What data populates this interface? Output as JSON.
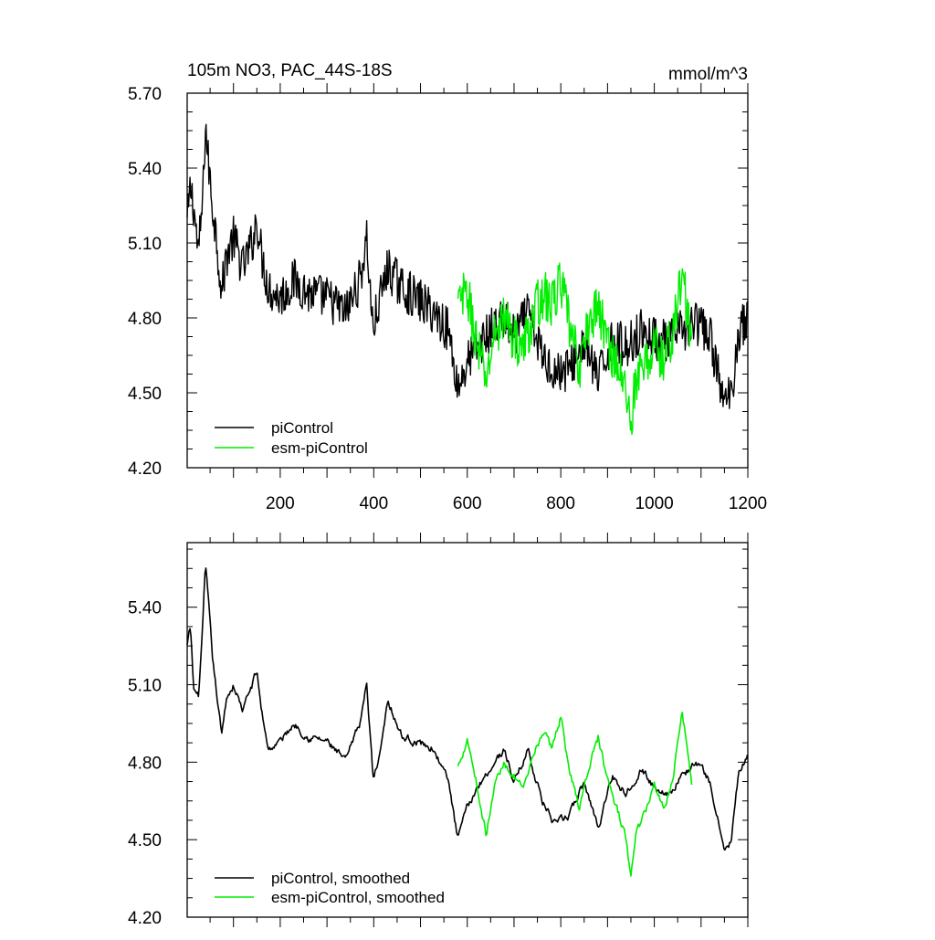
{
  "chart_data": [
    {
      "type": "line",
      "title": "105m NO3, PAC_44S-18S",
      "units": "mmol/m^3",
      "xlim": [
        1,
        1200
      ],
      "ylim": [
        4.2,
        5.7
      ],
      "xticks": [
        200,
        400,
        600,
        800,
        1000,
        1200
      ],
      "xtick_labels": [
        "200",
        "400",
        "600",
        "800",
        "1000",
        "1200"
      ],
      "yticks": [
        4.2,
        4.5,
        4.8,
        5.1,
        5.4,
        5.7
      ],
      "ytick_labels": [
        "4.20",
        "4.50",
        "4.80",
        "5.10",
        "5.40",
        "5.70"
      ],
      "legend_position": "bottom-left",
      "grid": false,
      "series": [
        {
          "name": "piControl",
          "color": "#000000",
          "x_range": [
            1,
            1200
          ],
          "anchors_x": [
            1,
            8,
            15,
            25,
            35,
            40,
            45,
            55,
            65,
            75,
            85,
            100,
            120,
            140,
            150,
            160,
            175,
            200,
            230,
            260,
            300,
            340,
            370,
            385,
            398,
            410,
            430,
            460,
            490,
            530,
            560,
            580,
            600,
            620,
            650,
            680,
            700,
            730,
            760,
            790,
            820,
            850,
            880,
            910,
            940,
            970,
            1000,
            1030,
            1060,
            1090,
            1120,
            1150,
            1165,
            1180,
            1200
          ],
          "anchors_y": [
            5.18,
            5.32,
            5.25,
            5.05,
            5.3,
            5.58,
            5.45,
            5.25,
            5.1,
            4.9,
            5.05,
            5.12,
            5.0,
            5.1,
            5.2,
            5.05,
            4.92,
            4.88,
            4.95,
            4.9,
            4.88,
            4.82,
            4.95,
            5.12,
            4.75,
            4.85,
            5.0,
            4.92,
            4.88,
            4.82,
            4.75,
            4.52,
            4.62,
            4.68,
            4.75,
            4.8,
            4.72,
            4.82,
            4.65,
            4.58,
            4.6,
            4.7,
            4.55,
            4.72,
            4.68,
            4.75,
            4.72,
            4.7,
            4.75,
            4.78,
            4.72,
            4.45,
            4.5,
            4.75,
            4.8
          ],
          "noise_amplitude": 0.09
        },
        {
          "name": "esm-piControl",
          "color": "#00ee00",
          "x_range": [
            580,
            1080
          ],
          "anchors_x": [
            580,
            600,
            620,
            640,
            660,
            680,
            700,
            720,
            740,
            760,
            780,
            800,
            820,
            840,
            860,
            880,
            900,
            920,
            940,
            950,
            960,
            980,
            1000,
            1020,
            1040,
            1060,
            1080
          ],
          "anchors_y": [
            4.85,
            4.9,
            4.7,
            4.55,
            4.75,
            4.8,
            4.72,
            4.68,
            4.8,
            4.9,
            4.85,
            4.95,
            4.75,
            4.6,
            4.78,
            4.85,
            4.7,
            4.62,
            4.5,
            4.38,
            4.55,
            4.6,
            4.7,
            4.62,
            4.75,
            4.98,
            4.7
          ],
          "noise_amplitude": 0.1
        }
      ]
    },
    {
      "type": "line",
      "xlim": [
        1,
        1200
      ],
      "ylim": [
        4.2,
        5.65
      ],
      "xticks": [
        200,
        400,
        600,
        800,
        1000,
        1200
      ],
      "yticks": [
        4.2,
        4.5,
        4.8,
        5.1,
        5.4
      ],
      "ytick_labels": [
        "4.20",
        "4.50",
        "4.80",
        "5.10",
        "5.40"
      ],
      "legend_position": "bottom-left",
      "grid": false,
      "series": [
        {
          "name": "piControl, smoothed",
          "color": "#000000",
          "x_range": [
            1,
            1200
          ],
          "anchors_x": [
            1,
            8,
            15,
            25,
            35,
            40,
            45,
            55,
            65,
            75,
            85,
            100,
            120,
            140,
            150,
            160,
            175,
            200,
            230,
            260,
            300,
            340,
            370,
            385,
            398,
            410,
            430,
            460,
            490,
            530,
            560,
            580,
            600,
            620,
            650,
            680,
            700,
            730,
            760,
            790,
            820,
            850,
            880,
            910,
            940,
            970,
            1000,
            1030,
            1060,
            1090,
            1120,
            1150,
            1165,
            1180,
            1200
          ],
          "anchors_y": [
            5.25,
            5.32,
            5.08,
            5.05,
            5.35,
            5.56,
            5.45,
            5.2,
            5.05,
            4.9,
            5.05,
            5.1,
            5.0,
            5.1,
            5.15,
            5.0,
            4.85,
            4.88,
            4.95,
            4.9,
            4.88,
            4.8,
            4.95,
            5.1,
            4.75,
            4.8,
            5.05,
            4.9,
            4.88,
            4.85,
            4.72,
            4.5,
            4.62,
            4.7,
            4.78,
            4.85,
            4.72,
            4.85,
            4.65,
            4.55,
            4.6,
            4.72,
            4.55,
            4.75,
            4.68,
            4.78,
            4.7,
            4.68,
            4.75,
            4.8,
            4.72,
            4.45,
            4.5,
            4.75,
            4.82
          ],
          "noise_amplitude": 0.04
        },
        {
          "name": "esm-piControl, smoothed",
          "color": "#00ee00",
          "x_range": [
            580,
            1080
          ],
          "anchors_x": [
            580,
            600,
            620,
            640,
            660,
            680,
            700,
            720,
            740,
            760,
            780,
            800,
            820,
            840,
            860,
            880,
            900,
            920,
            940,
            950,
            960,
            980,
            1000,
            1020,
            1040,
            1060,
            1080
          ],
          "anchors_y": [
            4.78,
            4.9,
            4.72,
            4.52,
            4.72,
            4.8,
            4.75,
            4.68,
            4.8,
            4.92,
            4.85,
            4.98,
            4.75,
            4.62,
            4.78,
            4.9,
            4.72,
            4.62,
            4.5,
            4.35,
            4.52,
            4.6,
            4.72,
            4.62,
            4.75,
            5.0,
            4.72
          ],
          "noise_amplitude": 0.045
        }
      ]
    }
  ]
}
